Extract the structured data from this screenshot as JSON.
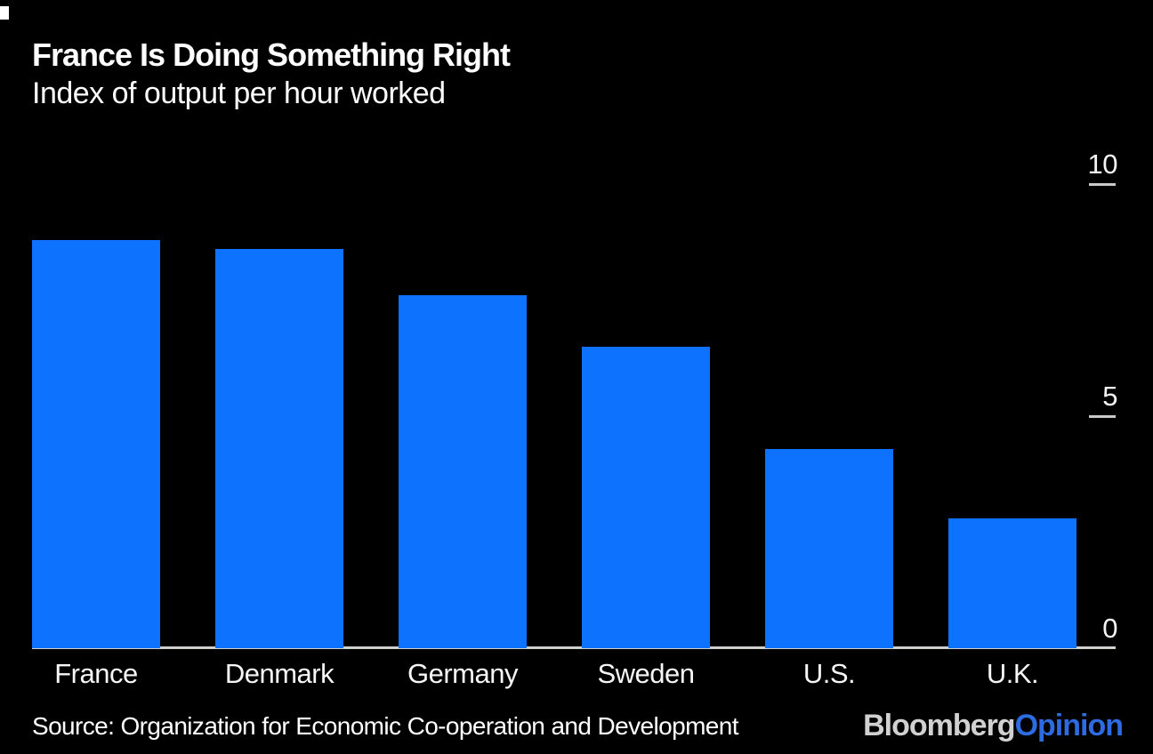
{
  "header": {
    "title": "France Is Doing Something Right",
    "subtitle": "Index of output per hour worked"
  },
  "chart_data": {
    "type": "bar",
    "categories": [
      "France",
      "Denmark",
      "Germany",
      "Sweden",
      "U.S.",
      "U.K."
    ],
    "values": [
      8.8,
      8.6,
      7.6,
      6.5,
      4.3,
      2.8
    ],
    "title": "France Is Doing Something Right",
    "subtitle": "Index of output per hour worked",
    "xlabel": "",
    "ylabel": "Index of output per hour worked",
    "ylim": [
      0,
      10
    ],
    "yticks": [
      10,
      5,
      0
    ],
    "grid": false,
    "legend": "none",
    "axis_side": "right"
  },
  "footer": {
    "source": "Source: Organization for Economic Co-operation and Development",
    "logo": {
      "brand": "Bloomberg",
      "division": "Opinion"
    }
  },
  "colors": {
    "background": "#000000",
    "bar": "#0d73ff",
    "title_text": "#ffffff",
    "axis_text": "#f4f4f4",
    "axis_line": "#d0d0cc",
    "tick_line": "#c9c9c9",
    "logo_brand": "#d1d1d1",
    "logo_division": "#2d6be0"
  }
}
